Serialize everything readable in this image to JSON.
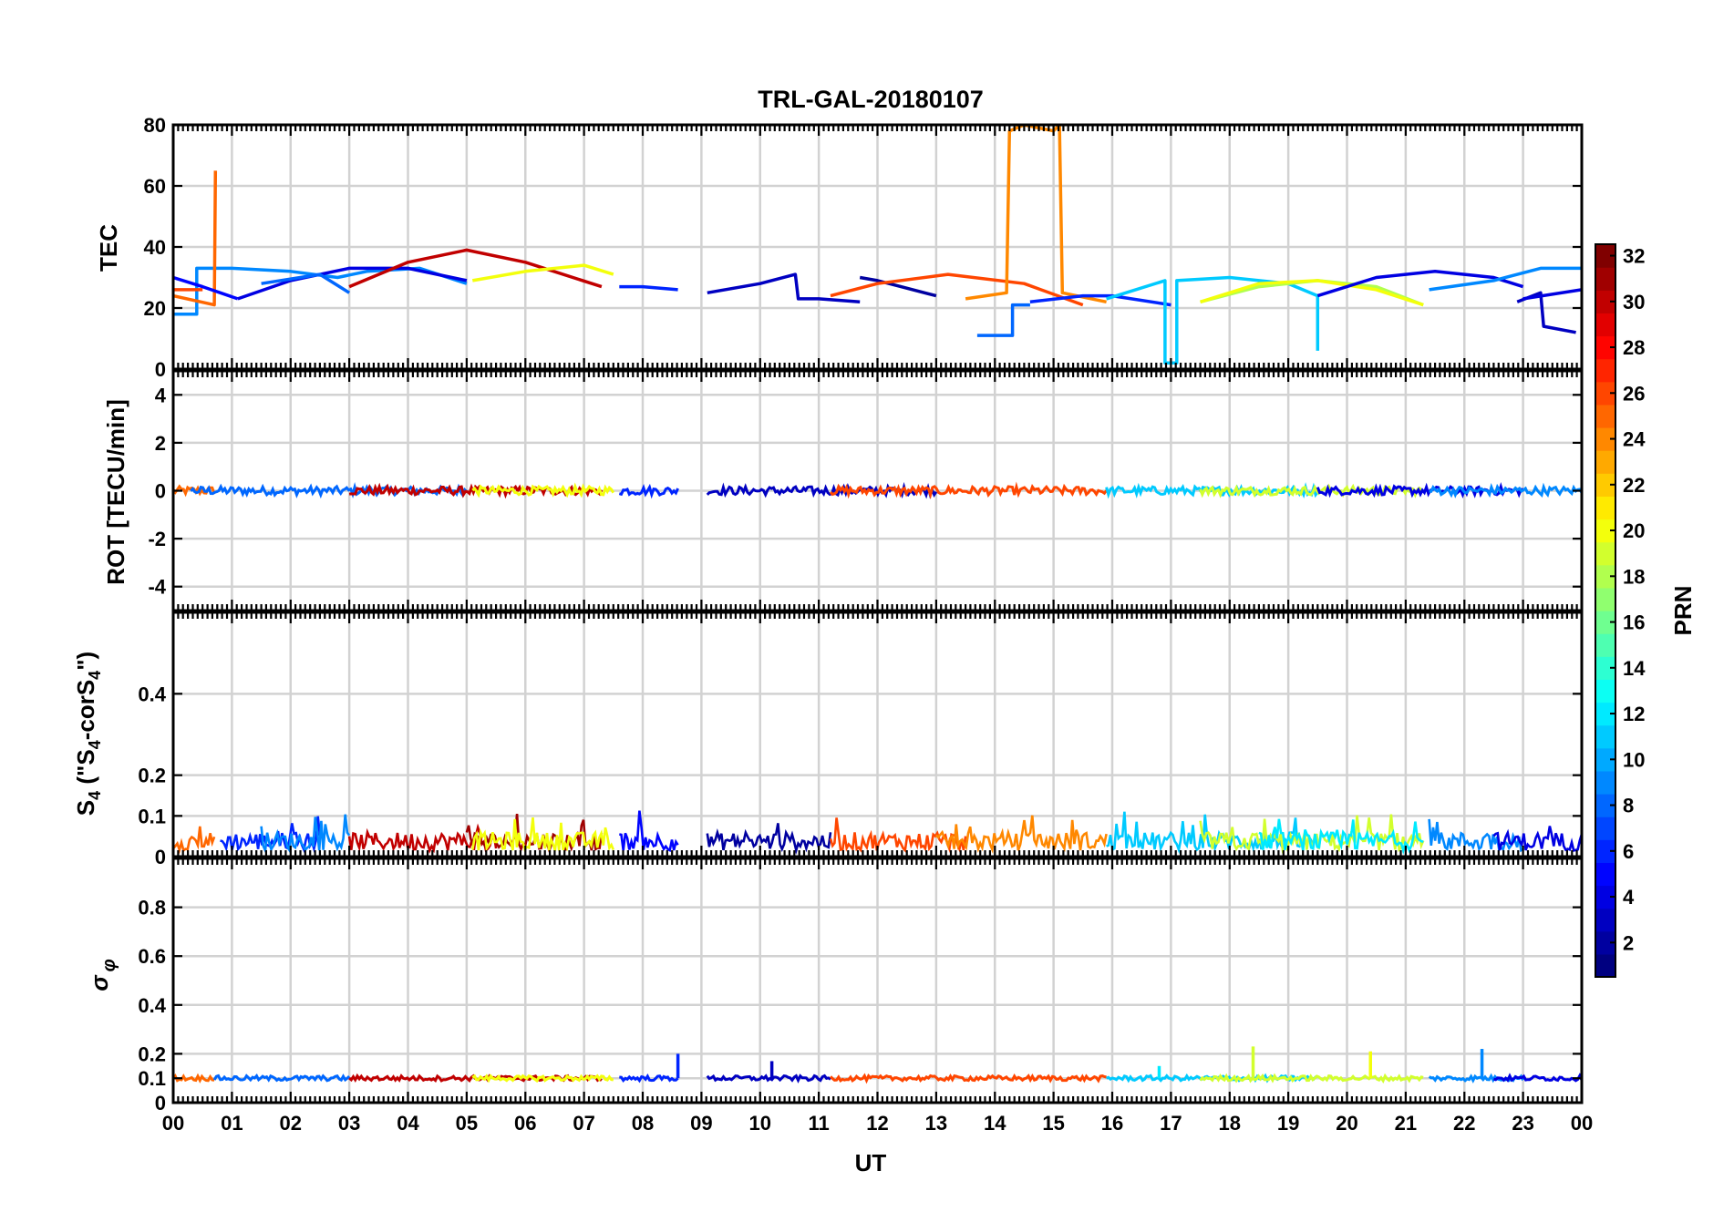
{
  "title": "TRL-GAL-20180107",
  "xlabel": "UT",
  "x_ticks": [
    "00",
    "01",
    "02",
    "03",
    "04",
    "05",
    "06",
    "07",
    "08",
    "09",
    "10",
    "11",
    "12",
    "13",
    "14",
    "15",
    "16",
    "17",
    "18",
    "19",
    "20",
    "21",
    "22",
    "23",
    "00"
  ],
  "colorbar": {
    "label": "PRN",
    "range": [
      1,
      32
    ],
    "ticks": [
      "2",
      "4",
      "6",
      "8",
      "10",
      "12",
      "14",
      "16",
      "18",
      "20",
      "22",
      "24",
      "26",
      "28",
      "30",
      "32"
    ],
    "colormap": "jet"
  },
  "chart_data": [
    {
      "type": "line",
      "panel": "TEC",
      "ylabel": "TEC",
      "xlim": [
        0,
        24
      ],
      "ylim": [
        0,
        80
      ],
      "y_ticks": [
        "0",
        "20",
        "40",
        "60",
        "80"
      ],
      "grid": true,
      "series": [
        {
          "prn": 9,
          "x": [
            0.0,
            0.4,
            0.4,
            0.95,
            1.0,
            2.0,
            2.8,
            3.3,
            4.2,
            5.0
          ],
          "y": [
            18,
            18,
            33,
            33,
            33,
            32,
            30,
            32,
            33,
            28
          ]
        },
        {
          "prn": 25,
          "x": [
            0.0,
            0.7,
            0.7,
            0.72
          ],
          "y": [
            24,
            21,
            21,
            65
          ]
        },
        {
          "prn": 26,
          "x": [
            0.0,
            0.5
          ],
          "y": [
            26,
            26
          ]
        },
        {
          "prn": 5,
          "x": [
            0.0,
            0.5,
            1.1
          ],
          "y": [
            30,
            27,
            23
          ]
        },
        {
          "prn": 4,
          "x": [
            1.1,
            2.0,
            3.0,
            4.0,
            5.0
          ],
          "y": [
            23,
            29,
            33,
            33,
            29
          ]
        },
        {
          "prn": 8,
          "x": [
            1.5,
            2.5,
            3.0
          ],
          "y": [
            28,
            31,
            25
          ]
        },
        {
          "prn": 30,
          "x": [
            3.0,
            4.0,
            5.0,
            6.0,
            7.3
          ],
          "y": [
            27,
            35,
            39,
            35,
            27
          ]
        },
        {
          "prn": 20,
          "x": [
            5.1,
            6.0,
            7.0,
            7.5
          ],
          "y": [
            29,
            32,
            34,
            31
          ]
        },
        {
          "prn": 6,
          "x": [
            7.6,
            8.0,
            8.6
          ],
          "y": [
            27,
            27,
            26
          ]
        },
        {
          "prn": 3,
          "x": [
            9.1,
            10.0,
            10.6,
            10.65,
            11.0,
            11.7
          ],
          "y": [
            25,
            28,
            31,
            23,
            23,
            22
          ]
        },
        {
          "prn": 2,
          "x": [
            11.7,
            12.0,
            12.4,
            13.0
          ],
          "y": [
            30,
            29,
            27,
            24
          ]
        },
        {
          "prn": 26,
          "x": [
            11.2,
            12.0,
            13.2,
            14.5,
            15.5
          ],
          "y": [
            24,
            28,
            31,
            28,
            21
          ]
        },
        {
          "prn": 24,
          "x": [
            13.5,
            14.2,
            14.25,
            14.5,
            15.0,
            15.1,
            15.15,
            15.9
          ],
          "y": [
            23,
            25,
            78,
            80,
            78,
            80,
            25,
            22
          ]
        },
        {
          "prn": 8,
          "x": [
            13.7,
            14.3,
            14.3,
            14.6
          ],
          "y": [
            11,
            11,
            21,
            21
          ]
        },
        {
          "prn": 6,
          "x": [
            14.6,
            15.5,
            16.0,
            17.0
          ],
          "y": [
            22,
            24,
            24,
            21
          ]
        },
        {
          "prn": 11,
          "x": [
            15.9,
            16.9,
            16.9,
            17.1,
            17.1,
            18.0,
            19.0,
            19.5,
            19.5
          ],
          "y": [
            23,
            29,
            2,
            2,
            29,
            30,
            28,
            24,
            6
          ]
        },
        {
          "prn": 18,
          "x": [
            17.5,
            18.5,
            19.5,
            20.5,
            21.3
          ],
          "y": [
            22,
            27,
            29,
            27,
            21
          ]
        },
        {
          "prn": 20,
          "x": [
            17.5,
            18.5,
            19.5,
            20.5,
            21.3
          ],
          "y": [
            22,
            28,
            29,
            26,
            21
          ]
        },
        {
          "prn": 4,
          "x": [
            19.5,
            20.5,
            21.5,
            22.5,
            23.0
          ],
          "y": [
            24,
            30,
            32,
            30,
            27
          ]
        },
        {
          "prn": 9,
          "x": [
            21.4,
            22.5,
            23.3,
            24.0
          ],
          "y": [
            26,
            29,
            33,
            33
          ]
        },
        {
          "prn": 3,
          "x": [
            22.9,
            23.3,
            23.35,
            23.9
          ],
          "y": [
            22,
            25,
            14,
            12
          ]
        },
        {
          "prn": 4,
          "x": [
            23.0,
            24.0
          ],
          "y": [
            23,
            26
          ]
        }
      ]
    },
    {
      "type": "line",
      "panel": "ROT",
      "ylabel": "ROT [TECU/min]",
      "xlim": [
        0,
        24
      ],
      "ylim": [
        -5,
        5
      ],
      "y_ticks": [
        "-4",
        "-2",
        "0",
        "2",
        "4"
      ],
      "grid": true,
      "segments": [
        {
          "prn": 25,
          "x0": 0.0,
          "x1": 0.7
        },
        {
          "prn": 8,
          "x0": 0.3,
          "x1": 5.0
        },
        {
          "prn": 30,
          "x0": 3.0,
          "x1": 7.3
        },
        {
          "prn": 20,
          "x0": 5.1,
          "x1": 7.5
        },
        {
          "prn": 6,
          "x0": 7.6,
          "x1": 8.6
        },
        {
          "prn": 3,
          "x0": 9.1,
          "x1": 13.0
        },
        {
          "prn": 26,
          "x0": 11.2,
          "x1": 15.9
        },
        {
          "prn": 11,
          "x0": 15.9,
          "x1": 19.5
        },
        {
          "prn": 19,
          "x0": 17.5,
          "x1": 21.3
        },
        {
          "prn": 4,
          "x0": 19.5,
          "x1": 23.0
        },
        {
          "prn": 9,
          "x0": 21.4,
          "x1": 24.0
        }
      ]
    },
    {
      "type": "line",
      "panel": "S4",
      "ylabel": "S4 (\"S4-corS4\")",
      "xlim": [
        0,
        24
      ],
      "ylim": [
        0,
        0.6
      ],
      "y_ticks": [
        "0",
        "0.1",
        "0.2",
        "0.4"
      ],
      "grid": true,
      "segments": [
        {
          "prn": 25,
          "x0": 0.0,
          "x1": 0.7
        },
        {
          "prn": 6,
          "x0": 0.8,
          "x1": 2.5
        },
        {
          "prn": 9,
          "x0": 1.5,
          "x1": 3.0
        },
        {
          "prn": 30,
          "x0": 3.0,
          "x1": 5.5
        },
        {
          "prn": 31,
          "x0": 5.0,
          "x1": 7.3
        },
        {
          "prn": 20,
          "x0": 5.1,
          "x1": 7.5
        },
        {
          "prn": 5,
          "x0": 7.6,
          "x1": 8.6
        },
        {
          "prn": 2,
          "x0": 9.1,
          "x1": 11.2
        },
        {
          "prn": 26,
          "x0": 11.2,
          "x1": 13.5
        },
        {
          "prn": 24,
          "x0": 13.0,
          "x1": 15.9
        },
        {
          "prn": 11,
          "x0": 15.9,
          "x1": 19.5
        },
        {
          "prn": 19,
          "x0": 17.5,
          "x1": 21.3
        },
        {
          "prn": 12,
          "x0": 18.5,
          "x1": 21.3
        },
        {
          "prn": 9,
          "x0": 21.4,
          "x1": 23.0
        },
        {
          "prn": 4,
          "x0": 22.5,
          "x1": 24.0
        }
      ]
    },
    {
      "type": "line",
      "panel": "sigma_phi",
      "ylabel": "σ φ",
      "xlim": [
        0,
        24
      ],
      "ylim": [
        0,
        1
      ],
      "y_ticks": [
        "0",
        "0.1",
        "0.2",
        "0.4",
        "0.6",
        "0.8"
      ],
      "grid": true,
      "segments": [
        {
          "prn": 25,
          "x0": 0.0,
          "x1": 0.7
        },
        {
          "prn": 8,
          "x0": 0.7,
          "x1": 3.0
        },
        {
          "prn": 30,
          "x0": 3.0,
          "x1": 7.3
        },
        {
          "prn": 20,
          "x0": 5.1,
          "x1": 7.5
        },
        {
          "prn": 6,
          "x0": 7.6,
          "x1": 8.6
        },
        {
          "prn": 3,
          "x0": 9.1,
          "x1": 11.2
        },
        {
          "prn": 26,
          "x0": 11.2,
          "x1": 15.9
        },
        {
          "prn": 11,
          "x0": 15.9,
          "x1": 19.5
        },
        {
          "prn": 19,
          "x0": 17.5,
          "x1": 21.3
        },
        {
          "prn": 9,
          "x0": 21.4,
          "x1": 23.0
        },
        {
          "prn": 4,
          "x0": 22.5,
          "x1": 24.0
        }
      ],
      "spikes": [
        {
          "prn": 6,
          "x": 8.6,
          "y": 0.2
        },
        {
          "prn": 3,
          "x": 10.2,
          "y": 0.17
        },
        {
          "prn": 12,
          "x": 16.8,
          "y": 0.15
        },
        {
          "prn": 19,
          "x": 18.4,
          "y": 0.23
        },
        {
          "prn": 20,
          "x": 20.4,
          "y": 0.21
        },
        {
          "prn": 9,
          "x": 22.3,
          "y": 0.22
        }
      ]
    }
  ]
}
